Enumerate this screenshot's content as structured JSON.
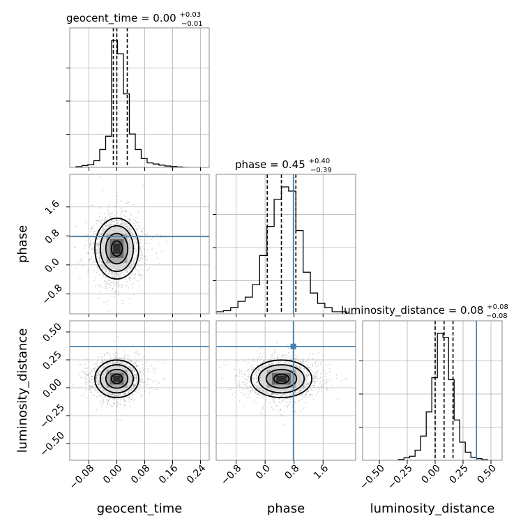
{
  "chart_data": {
    "type": "corner",
    "parameters": [
      "geocent_time",
      "phase",
      "luminosity_distance"
    ],
    "truths": {
      "geocent_time": null,
      "phase": 0.78,
      "luminosity_distance": 0.37
    },
    "truth_color": "#4682b4",
    "axis_labels": {
      "geocent_time": "geocent_time",
      "phase": "phase",
      "luminosity_distance": "luminosity_distance"
    },
    "titles": [
      {
        "param": "geocent_time",
        "label": "geocent_time = 0.00",
        "plus": "+0.03",
        "minus": "−0.01"
      },
      {
        "param": "phase",
        "label": "phase = 0.45",
        "plus": "+0.40",
        "minus": "−0.39"
      },
      {
        "param": "luminosity_distance",
        "label": "luminosity_distance = 0.08",
        "plus": "+0.08",
        "minus": "−0.08"
      }
    ],
    "ranges": {
      "geocent_time": [
        -0.135,
        0.265
      ],
      "phase": [
        -1.35,
        2.5
      ],
      "luminosity_distance": [
        -0.65,
        0.6
      ]
    },
    "ticks": {
      "geocent_time": [
        -0.08,
        0.0,
        0.08,
        0.16,
        0.24
      ],
      "phase": [
        -0.8,
        0.0,
        0.8,
        1.6
      ],
      "luminosity_distance": [
        -0.5,
        -0.25,
        0.0,
        0.25,
        0.5
      ]
    },
    "tick_labels": {
      "geocent_time": [
        "−0.08",
        "0.00",
        "0.08",
        "0.16",
        "0.24"
      ],
      "phase": [
        "−0.8",
        "0.0",
        "0.8",
        "1.6"
      ],
      "luminosity_distance": [
        "−0.50",
        "−0.25",
        "0.00",
        "0.25",
        "0.50"
      ]
    },
    "quantiles": {
      "geocent_time": [
        -0.01,
        0.0,
        0.03
      ],
      "phase": [
        0.06,
        0.45,
        0.85
      ],
      "luminosity_distance": [
        0.0,
        0.08,
        0.16
      ]
    },
    "histograms": {
      "geocent_time": {
        "edges": [
          -0.117,
          -0.1,
          -0.083,
          -0.066,
          -0.049,
          -0.032,
          -0.015,
          0.002,
          0.019,
          0.036,
          0.053,
          0.07,
          0.087,
          0.104,
          0.121,
          0.138,
          0.155,
          0.172,
          0.189,
          0.206
        ],
        "counts": [
          0.3,
          0.8,
          1.2,
          3.0,
          8.0,
          14.0,
          57.0,
          51.0,
          33.0,
          15.0,
          8.0,
          4.0,
          2.0,
          1.5,
          1.0,
          0.6,
          0.4,
          0.2,
          0.0
        ]
      },
      "phase": {
        "edges": [
          -1.35,
          -1.15,
          -0.95,
          -0.75,
          -0.55,
          -0.35,
          -0.15,
          0.05,
          0.25,
          0.45,
          0.65,
          0.85,
          1.05,
          1.25,
          1.45,
          1.65,
          1.85,
          2.05,
          2.25
        ],
        "counts": [
          1.0,
          1.5,
          3.0,
          6.0,
          8.0,
          14.0,
          28.0,
          42.0,
          55.0,
          61.0,
          59.0,
          40.0,
          20.0,
          10.0,
          5.0,
          3.0,
          1.0,
          1.0
        ]
      },
      "luminosity_distance": {
        "edges": [
          -0.33,
          -0.28,
          -0.23,
          -0.18,
          -0.13,
          -0.08,
          -0.03,
          0.02,
          0.07,
          0.12,
          0.17,
          0.22,
          0.27,
          0.32,
          0.37,
          0.42,
          0.47
        ],
        "counts": [
          0.4,
          1.2,
          2.0,
          5.0,
          12.0,
          24.0,
          41.0,
          63.0,
          61.0,
          40.0,
          20.0,
          9.0,
          4.0,
          1.5,
          0.8,
          0.3
        ]
      }
    },
    "scatter_2d": [
      {
        "x_param": "geocent_time",
        "y_param": "phase",
        "center": [
          0.0,
          0.45
        ],
        "sd": [
          0.03,
          0.4
        ]
      },
      {
        "x_param": "geocent_time",
        "y_param": "luminosity_distance",
        "center": [
          0.0,
          0.08
        ],
        "sd": [
          0.03,
          0.08
        ]
      },
      {
        "x_param": "phase",
        "y_param": "luminosity_distance",
        "center": [
          0.45,
          0.08
        ],
        "sd": [
          0.4,
          0.08
        ]
      }
    ]
  }
}
